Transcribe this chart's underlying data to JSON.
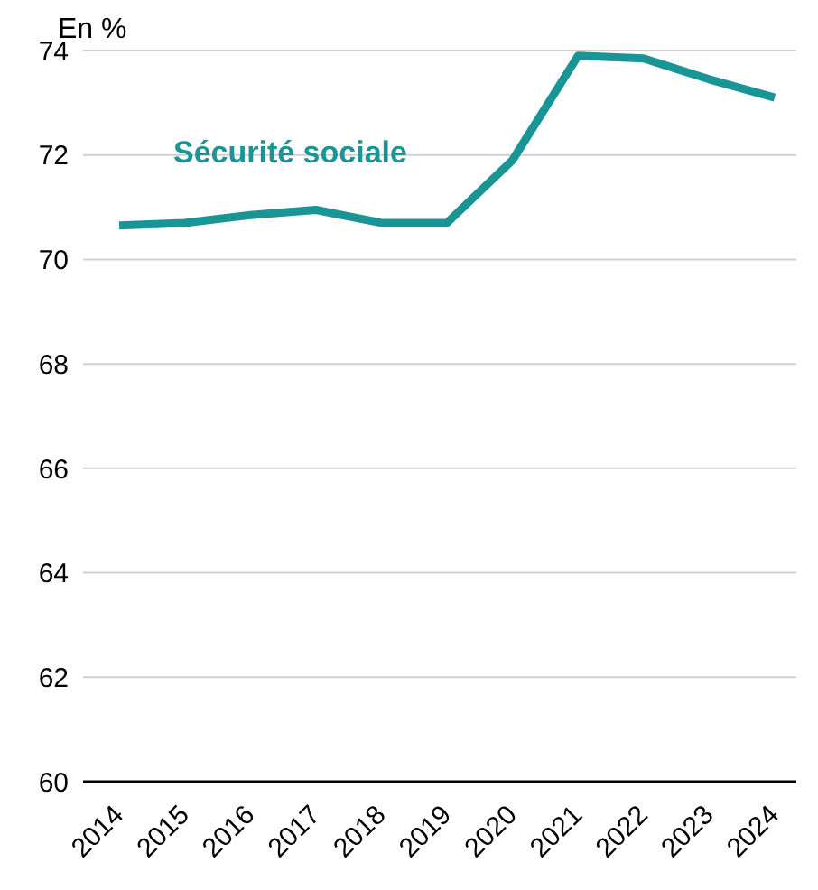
{
  "chart_data": {
    "type": "line",
    "ylabel": "En %",
    "categories": [
      "2014",
      "2015",
      "2016",
      "2017",
      "2018",
      "2019",
      "2020",
      "2021",
      "2022",
      "2023",
      "2024"
    ],
    "series": [
      {
        "name": "Sécurité sociale",
        "color": "#1a9596",
        "values": [
          70.65,
          70.7,
          70.85,
          70.95,
          70.7,
          70.7,
          71.9,
          73.9,
          73.85,
          73.45,
          73.1
        ]
      }
    ],
    "ylim": [
      60,
      74
    ],
    "yticks": [
      60,
      62,
      64,
      66,
      68,
      70,
      72,
      74
    ],
    "grid": "y",
    "marker": "none",
    "line_style": "solid"
  }
}
